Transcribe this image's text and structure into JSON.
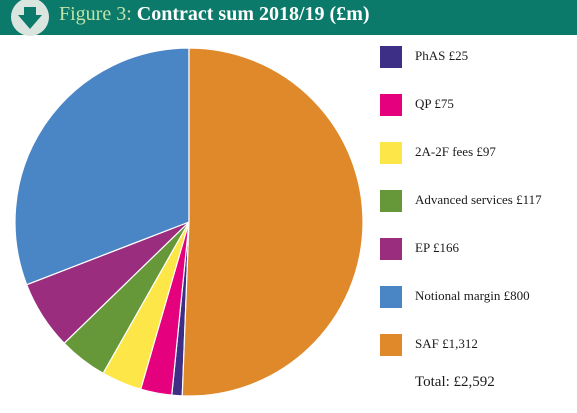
{
  "header": {
    "label": "Figure 3:",
    "title": "Contract sum 2018/19 (£m)",
    "icon": "download-arrow-icon"
  },
  "colors": {
    "header_bg": "#0b7a6b",
    "label": "#bfe3a8"
  },
  "chart_data": {
    "type": "pie",
    "title": "Contract sum 2018/19 (£m)",
    "slices": [
      {
        "name": "PhAS",
        "value": 25,
        "label": "PhAS £25",
        "color": "#3e2f86"
      },
      {
        "name": "QP",
        "value": 75,
        "label": "QP £75",
        "color": "#e5007e"
      },
      {
        "name": "2A-2F fees",
        "value": 97,
        "label": "2A-2F fees £97",
        "color": "#fde748"
      },
      {
        "name": "Advanced services",
        "value": 117,
        "label": "Advanced services £117",
        "color": "#66983a"
      },
      {
        "name": "EP",
        "value": 166,
        "label": "EP £166",
        "color": "#9b2d7f"
      },
      {
        "name": "Notional margin",
        "value": 800,
        "label": "Notional margin £800",
        "color": "#4a86c5"
      },
      {
        "name": "SAF",
        "value": 1312,
        "label": "SAF £1,312",
        "color": "#e0892b"
      }
    ],
    "total_label": "Total: £2,592",
    "legend": "right"
  }
}
